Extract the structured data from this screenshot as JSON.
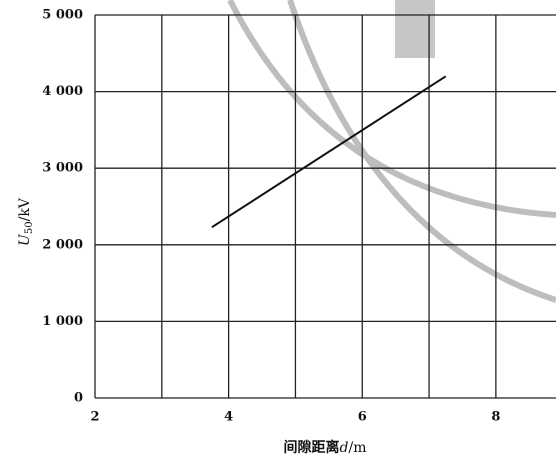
{
  "chart_data": {
    "type": "line",
    "xlabel": [
      "间隙距离",
      "d",
      "/m"
    ],
    "ylabel": [
      "U",
      "50",
      "/kV"
    ],
    "xlim": [
      2,
      8.9
    ],
    "ylim": [
      0,
      5000
    ],
    "xticks": [
      2,
      4,
      6,
      8
    ],
    "xgrid": [
      3,
      5,
      7
    ],
    "yticks": [
      0,
      {
        "value": 1000,
        "label": "1 000"
      },
      {
        "value": 2000,
        "label": "2 000"
      },
      {
        "value": 3000,
        "label": "3 000"
      },
      {
        "value": 4000,
        "label": "4 000"
      },
      {
        "value": 5000,
        "label": "5 000"
      }
    ],
    "grid": true,
    "x": [
      3.75,
      7.25
    ],
    "series": [
      {
        "color": "#111111",
        "values": [
          2230,
          4200
        ]
      }
    ]
  }
}
